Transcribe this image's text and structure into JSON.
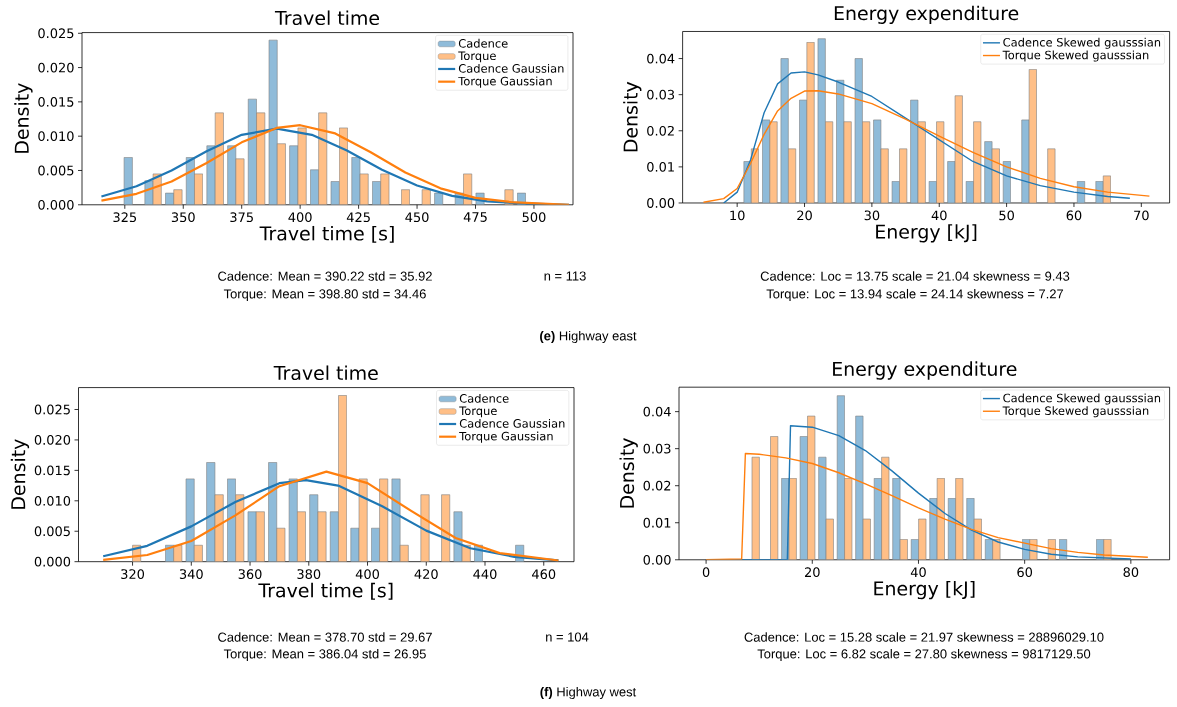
{
  "chart_data": [
    {
      "type": "histogram",
      "title": "Travel time",
      "xlabel": "Travel time [s]",
      "ylabel": "Density",
      "legend": "top right",
      "bins": [
        323.8,
        332.7,
        341.5,
        350.4,
        359.2,
        368.1,
        376.9,
        385.8,
        394.6,
        403.5,
        412.3,
        421.2,
        430.0,
        438.9,
        447.7,
        456.6,
        465.4,
        474.3,
        483.1,
        492.0,
        500.8
      ],
      "series": [
        {
          "name": "Cadence",
          "color": "#8fbbd9",
          "values": [
            0.0069,
            0.0035,
            0.0017,
            0.0069,
            0.0086,
            0.0086,
            0.0154,
            0.024,
            0.0086,
            0.0051,
            0.0034,
            0.0069,
            0.0034,
            0,
            0,
            0.0017,
            0.0017,
            0.0017,
            0,
            0.0017
          ]
        },
        {
          "name": "Torque",
          "color": "#ffbf87",
          "values": [
            0,
            0.0045,
            0.0022,
            0.0045,
            0.0134,
            0.0067,
            0.0134,
            0.0089,
            0.0112,
            0.0134,
            0.0112,
            0.0045,
            0.0045,
            0.0022,
            0.0022,
            0,
            0.0045,
            0,
            0.0022,
            0
          ]
        },
        {
          "type": "line",
          "name": "Cadence Gaussian",
          "color": "#1f77b4",
          "x": [
            315,
            330,
            345,
            360,
            375,
            390,
            405,
            420,
            435,
            450,
            465,
            480,
            495,
            515
          ],
          "values": [
            0.0012,
            0.0027,
            0.005,
            0.0078,
            0.0102,
            0.0111,
            0.0102,
            0.0079,
            0.0051,
            0.0028,
            0.0013,
            0.0005,
            0.0002,
            0.0
          ]
        },
        {
          "type": "line",
          "name": "Torque Gaussian",
          "color": "#ff7f0e",
          "x": [
            315,
            330,
            345,
            360,
            375,
            390,
            400,
            415,
            430,
            445,
            460,
            475,
            490,
            515
          ],
          "values": [
            0.0006,
            0.0016,
            0.0034,
            0.0061,
            0.0091,
            0.0112,
            0.0116,
            0.0104,
            0.0077,
            0.0047,
            0.0024,
            0.001,
            0.0004,
            0.0
          ]
        }
      ],
      "xlim": [
        306.7,
        516.7
      ],
      "ylim": [
        0,
        0.0251
      ],
      "xticks": [
        325,
        350,
        375,
        400,
        425,
        450,
        475,
        500
      ],
      "yticks": [
        {
          "value": 0,
          "label": "0.000"
        },
        {
          "value": 0.005,
          "label": "0.005"
        },
        {
          "value": 0.01,
          "label": "0.010"
        },
        {
          "value": 0.015,
          "label": "0.015"
        },
        {
          "value": 0.02,
          "label": "0.020"
        },
        {
          "value": 0.025,
          "label": "0.025"
        }
      ],
      "annotations": [
        "Cadence: Mean = 390.22 std = 35.92",
        "Torque: Mean = 398.80 std = 34.46",
        "n = 113"
      ]
    },
    {
      "type": "histogram",
      "title": "Energy expenditure",
      "xlabel": "Energy [kJ]",
      "ylabel": "Density",
      "legend": "top right",
      "bins": [
        10.72,
        13.47,
        16.22,
        18.97,
        21.72,
        24.47,
        27.22,
        29.97,
        32.72,
        35.47,
        38.22,
        40.97,
        43.72,
        46.47,
        49.22,
        51.97,
        54.72,
        57.47,
        60.22,
        62.97,
        65.72
      ],
      "series": [
        {
          "color": "#8fbbd9",
          "values": [
            0.0115,
            0.023,
            0.04,
            0.0285,
            0.0455,
            0.034,
            0.04,
            0.023,
            0.006,
            0.0285,
            0.006,
            0.0115,
            0.006,
            0.017,
            0.0115,
            0.023,
            0,
            0,
            0.006,
            0.006
          ]
        },
        {
          "color": "#ffbf87",
          "values": [
            0.015,
            0.0225,
            0.015,
            0.0445,
            0.0225,
            0.0225,
            0.0225,
            0.015,
            0.015,
            0.0225,
            0.0225,
            0.0297,
            0.0225,
            0.015,
            0,
            0.037,
            0.015,
            0,
            0,
            0.0075
          ]
        },
        {
          "type": "line",
          "name": "Cadence Skewed gausssian",
          "color": "#1f77b4",
          "x": [
            8,
            10,
            12,
            14,
            16,
            18,
            20,
            22,
            25,
            30,
            35,
            40,
            45,
            50,
            55,
            60,
            65,
            68.3
          ],
          "values": [
            0.0,
            0.003,
            0.012,
            0.025,
            0.033,
            0.036,
            0.0363,
            0.0355,
            0.0335,
            0.0295,
            0.0235,
            0.0175,
            0.0115,
            0.0075,
            0.0048,
            0.003,
            0.0018,
            0.0013
          ]
        },
        {
          "type": "line",
          "name": "Torque Skewed gausssian",
          "color": "#ff7f0e",
          "x": [
            5,
            8,
            10,
            12,
            14,
            16,
            18,
            20,
            22,
            25,
            30,
            35,
            40,
            45,
            50,
            55,
            60,
            65,
            71.2
          ],
          "values": [
            0.0002,
            0.0012,
            0.004,
            0.011,
            0.019,
            0.0255,
            0.029,
            0.031,
            0.0311,
            0.0302,
            0.0275,
            0.0232,
            0.0185,
            0.014,
            0.01,
            0.0068,
            0.0045,
            0.003,
            0.0019
          ]
        }
      ],
      "xlim": [
        1.9,
        74.2
      ],
      "ylim": [
        0,
        0.0475
      ],
      "xticks": [
        10,
        20,
        30,
        40,
        50,
        60,
        70
      ],
      "yticks": [
        {
          "value": 0,
          "label": "0.00"
        },
        {
          "value": 0.01,
          "label": "0.01"
        },
        {
          "value": 0.02,
          "label": "0.02"
        },
        {
          "value": 0.03,
          "label": "0.03"
        },
        {
          "value": 0.04,
          "label": "0.04"
        }
      ],
      "annotations": [
        "Cadence: Loc = 13.75 scale = 21.04 skewness = 9.43",
        "Torque: Loc = 13.94 scale = 24.14 skewness = 7.27",
        "**(e)** Highway east"
      ]
    },
    {
      "type": "histogram",
      "title": "Travel time",
      "xlabel": "Travel time [s]",
      "ylabel": "Density",
      "legend": "top right",
      "bins": [
        316.5,
        323.5,
        330.5,
        337.5,
        344.5,
        351.6,
        358.6,
        365.6,
        372.6,
        379.6,
        386.6,
        393.6,
        400.6,
        407.6,
        414.6,
        421.7,
        428.7,
        435.7,
        442.7,
        449.7,
        456.7
      ],
      "series": [
        {
          "name": "Cadence",
          "color": "#8fbbd9",
          "values": [
            0,
            0,
            0.0027,
            0.0136,
            0.0163,
            0.0136,
            0.0082,
            0.0163,
            0.0136,
            0.011,
            0.0082,
            0.0055,
            0.0055,
            0.0136,
            0,
            0,
            0.0082,
            0.0027,
            0,
            0.0027
          ]
        },
        {
          "name": "Torque",
          "color": "#ffbf87",
          "values": [
            0.0027,
            0,
            0.0027,
            0.0027,
            0.011,
            0.011,
            0.0082,
            0.0055,
            0.0082,
            0.0082,
            0.0273,
            0.0136,
            0.0136,
            0.0027,
            0.011,
            0.011,
            0.0027,
            0,
            0,
            0
          ]
        },
        {
          "type": "line",
          "name": "Cadence Gaussian",
          "color": "#1f77b4",
          "x": [
            310,
            325,
            340,
            355,
            370,
            379,
            390,
            405,
            420,
            435,
            450,
            465
          ],
          "values": [
            0.0009,
            0.0026,
            0.0058,
            0.0098,
            0.0129,
            0.0134,
            0.0125,
            0.0091,
            0.0051,
            0.0022,
            0.0008,
            0.0002
          ]
        },
        {
          "type": "line",
          "name": "Torque Gaussian",
          "color": "#ff7f0e",
          "x": [
            310,
            325,
            340,
            355,
            370,
            386,
            400,
            415,
            430,
            445,
            465
          ],
          "values": [
            0.0003,
            0.0011,
            0.0034,
            0.0076,
            0.0124,
            0.0148,
            0.0129,
            0.0083,
            0.0039,
            0.0014,
            0.0002
          ]
        }
      ],
      "xlim": [
        301.6,
        470.3
      ],
      "ylim": [
        0,
        0.0286
      ],
      "xticks": [
        320,
        340,
        360,
        380,
        400,
        420,
        440,
        460
      ],
      "yticks": [
        {
          "value": 0,
          "label": "0.000"
        },
        {
          "value": 0.005,
          "label": "0.005"
        },
        {
          "value": 0.01,
          "label": "0.010"
        },
        {
          "value": 0.015,
          "label": "0.015"
        },
        {
          "value": 0.02,
          "label": "0.020"
        },
        {
          "value": 0.025,
          "label": "0.025"
        }
      ],
      "annotations": [
        "Cadence: Mean = 378.70 std = 29.67",
        "Torque: Mean = 386.04 std = 26.95",
        "n = 104"
      ]
    },
    {
      "type": "histogram",
      "title": "Energy expenditure",
      "xlabel": "Energy [kJ]",
      "ylabel": "Density",
      "legend": "top right",
      "bins": [
        6.9,
        10.39,
        13.87,
        17.36,
        20.85,
        24.34,
        27.82,
        31.31,
        34.8,
        38.28,
        41.77,
        45.26,
        48.74,
        52.23,
        55.72,
        59.21,
        62.69,
        66.18,
        69.67,
        73.15,
        76.64
      ],
      "series": [
        {
          "color": "#8fbbd9",
          "values": [
            0,
            0,
            0.022,
            0.0333,
            0.0277,
            0.0443,
            0.0388,
            0.022,
            0.022,
            0.0055,
            0.0166,
            0.0166,
            0.0166,
            0.0055,
            0,
            0.0055,
            0,
            0.0055,
            0,
            0.0055
          ]
        },
        {
          "color": "#ffbf87",
          "values": [
            0.0277,
            0.0333,
            0.022,
            0.0388,
            0.011,
            0.022,
            0.011,
            0.0277,
            0.0055,
            0.011,
            0.022,
            0.022,
            0.011,
            0.0055,
            0,
            0.0055,
            0.0055,
            0,
            0,
            0.0055
          ]
        },
        {
          "type": "line",
          "name": "Cadence Skewed gausssian",
          "color": "#1f77b4",
          "x": [
            0,
            15.3,
            15.9,
            20,
            25,
            30,
            35,
            40,
            45,
            50,
            55,
            60,
            65,
            70,
            80
          ],
          "values": [
            0,
            0,
            0.0362,
            0.0358,
            0.0335,
            0.0295,
            0.024,
            0.018,
            0.0125,
            0.008,
            0.0048,
            0.0028,
            0.0015,
            0.0008,
            0.0002
          ]
        },
        {
          "type": "line",
          "name": "Torque Skewed gausssian",
          "color": "#ff7f0e",
          "x": [
            0,
            6.7,
            7.4,
            10,
            15,
            20,
            25,
            30,
            35,
            40,
            45,
            50,
            55,
            60,
            65,
            70,
            75,
            83.2
          ],
          "values": [
            0,
            0.0002,
            0.0287,
            0.0285,
            0.0275,
            0.026,
            0.0235,
            0.0205,
            0.0173,
            0.014,
            0.011,
            0.0082,
            0.006,
            0.0045,
            0.003,
            0.002,
            0.0013,
            0.0007
          ]
        }
      ],
      "xlim": [
        -5.1,
        87.3
      ],
      "ylim": [
        0,
        0.0466
      ],
      "xticks": [
        0,
        20,
        40,
        60,
        80
      ],
      "yticks": [
        {
          "value": 0,
          "label": "0.00"
        },
        {
          "value": 0.01,
          "label": "0.01"
        },
        {
          "value": 0.02,
          "label": "0.02"
        },
        {
          "value": 0.03,
          "label": "0.03"
        },
        {
          "value": 0.04,
          "label": "0.04"
        }
      ],
      "annotations": [
        "Cadence: Loc = 15.28 scale = 21.97 skewness = 28896029.10",
        "Torque: Loc = 6.82 scale = 27.80 skewness = 9817129.50",
        "**(f)** Highway west"
      ]
    }
  ]
}
